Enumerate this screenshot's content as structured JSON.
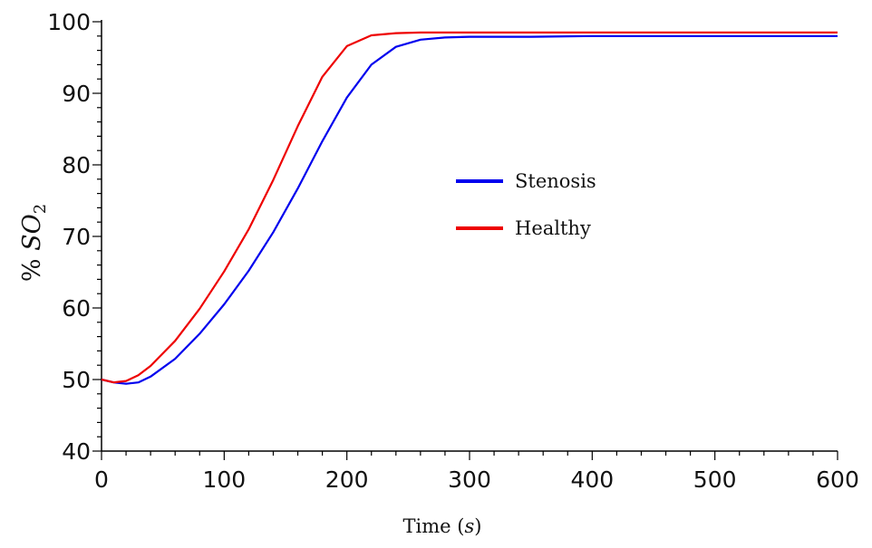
{
  "chart_data": {
    "type": "line",
    "xlabel_prefix": "Time (",
    "xlabel_var": "s",
    "xlabel_suffix": ")",
    "ylabel_prefix": "% ",
    "ylabel_var": "SO",
    "ylabel_sub": "2",
    "xlim": [
      0,
      600
    ],
    "ylim": [
      40,
      100
    ],
    "xticks": [
      0,
      100,
      200,
      300,
      400,
      500,
      600
    ],
    "yticks": [
      40,
      50,
      60,
      70,
      80,
      90,
      100
    ],
    "grid": false,
    "legend_position": "center-right",
    "series": [
      {
        "name": "Stenosis",
        "color": "#0000ee",
        "x": [
          0,
          10,
          20,
          30,
          40,
          60,
          80,
          100,
          120,
          140,
          160,
          180,
          200,
          220,
          240,
          260,
          280,
          300,
          350,
          400,
          500,
          600
        ],
        "y": [
          50.0,
          49.6,
          49.4,
          49.6,
          50.4,
          52.9,
          56.4,
          60.5,
          65.2,
          70.6,
          76.7,
          83.3,
          89.4,
          94.0,
          96.5,
          97.5,
          97.8,
          97.9,
          97.9,
          98.0,
          98.0,
          98.0
        ]
      },
      {
        "name": "Healthy",
        "color": "#ee0000",
        "x": [
          0,
          10,
          20,
          30,
          40,
          60,
          80,
          100,
          120,
          140,
          160,
          180,
          200,
          220,
          240,
          260,
          300,
          350,
          400,
          500,
          600
        ],
        "y": [
          50.0,
          49.6,
          49.8,
          50.6,
          51.9,
          55.4,
          59.9,
          65.1,
          71.0,
          77.9,
          85.4,
          92.3,
          96.6,
          98.1,
          98.4,
          98.5,
          98.5,
          98.5,
          98.5,
          98.5,
          98.5
        ]
      }
    ]
  }
}
